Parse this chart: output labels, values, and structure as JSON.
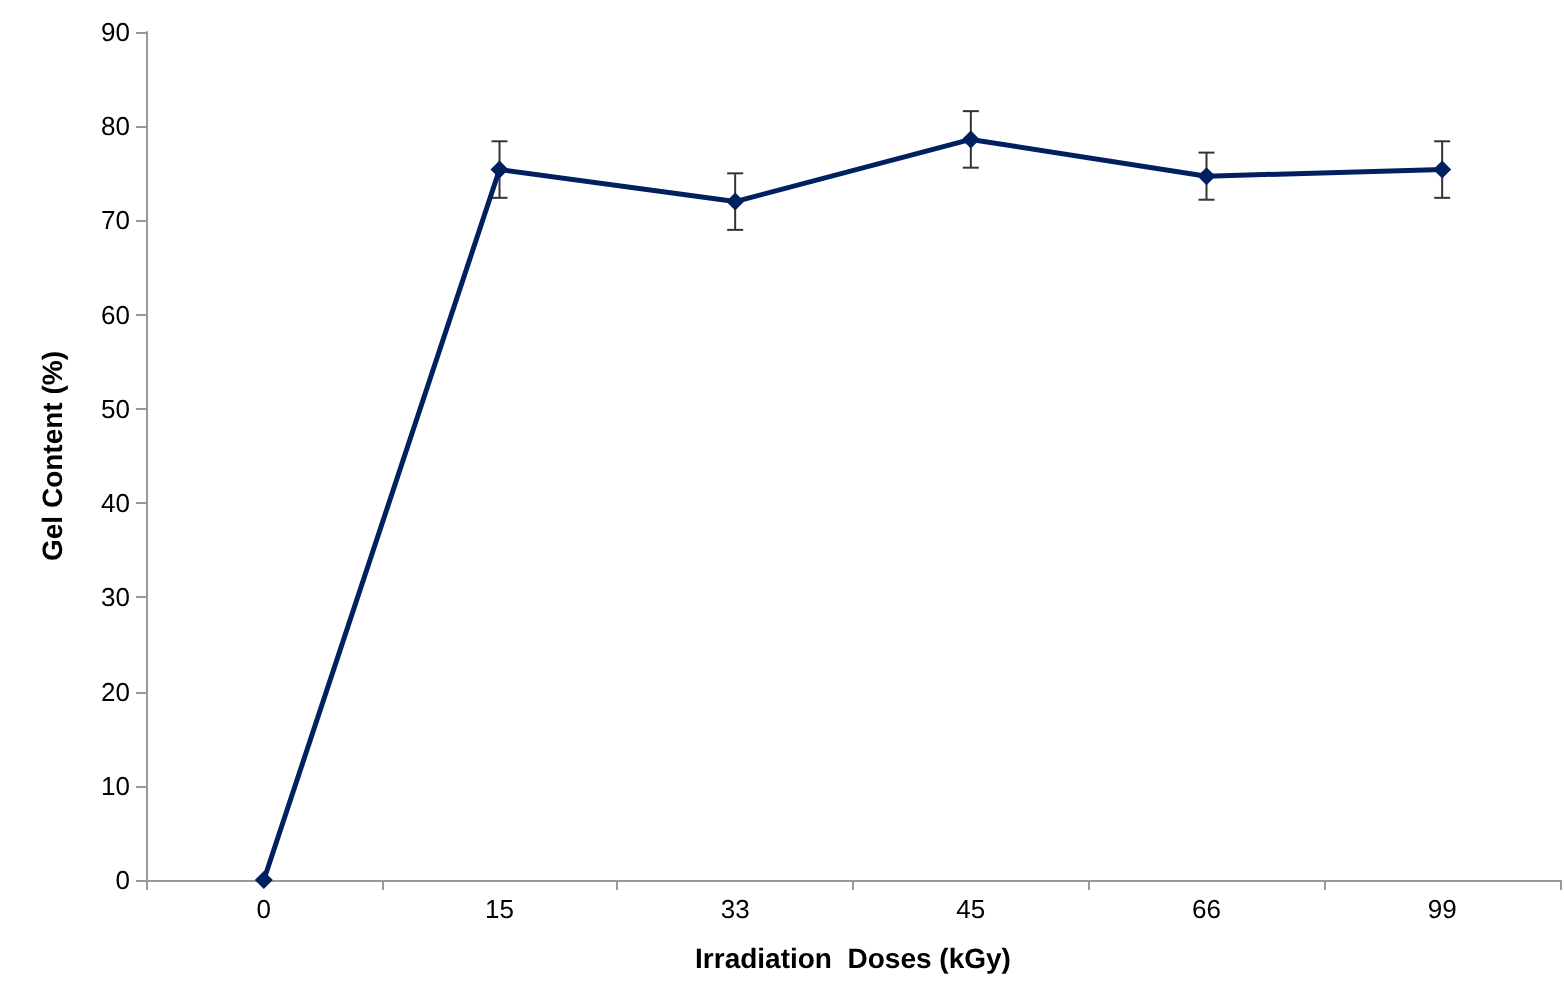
{
  "chart_data": {
    "type": "line",
    "xlabel": "Irradiation  Doses (kGy)",
    "ylabel": "Gel Content (%)",
    "categories": [
      "0",
      "15",
      "33",
      "45",
      "66",
      "99"
    ],
    "series": [
      {
        "color": "#002060",
        "values": [
          0,
          75.4,
          72.0,
          78.6,
          74.7,
          75.4
        ],
        "errors": [
          null,
          3,
          3,
          3,
          2.5,
          3
        ]
      }
    ],
    "ylim": [
      0,
      90
    ],
    "yticks": [
      0,
      10,
      20,
      30,
      40,
      50,
      60,
      70,
      80,
      90
    ],
    "grid": false,
    "marker": "diamond",
    "line_style": "solid"
  }
}
